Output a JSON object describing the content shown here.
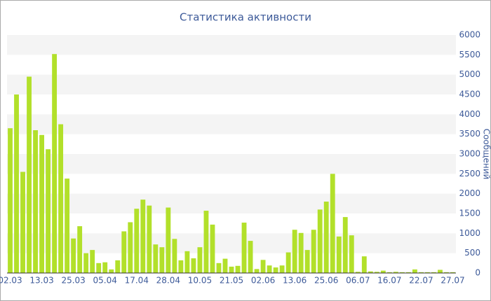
{
  "chart_data": {
    "type": "bar",
    "title": "Статистика активности",
    "y_label": "Сообщений",
    "categories": [
      "02.03",
      null,
      null,
      null,
      null,
      "13.03",
      null,
      null,
      null,
      null,
      "25.03",
      null,
      null,
      null,
      null,
      "05.04",
      null,
      null,
      null,
      null,
      "17.04",
      null,
      null,
      null,
      null,
      "28.04",
      null,
      null,
      null,
      null,
      "10.05",
      null,
      null,
      null,
      null,
      "21.05",
      null,
      null,
      null,
      null,
      "02.06",
      null,
      null,
      null,
      null,
      "13.06",
      null,
      null,
      null,
      null,
      "25.06",
      null,
      null,
      null,
      null,
      "06.07",
      null,
      null,
      null,
      null,
      "16.07",
      null,
      null,
      null,
      null,
      "22.07",
      null,
      null,
      null,
      null,
      "27.07"
    ],
    "values": [
      3650,
      4500,
      2550,
      4950,
      3600,
      3480,
      3120,
      5520,
      3750,
      2380,
      870,
      1180,
      500,
      580,
      250,
      270,
      90,
      320,
      1050,
      1280,
      1620,
      1850,
      1700,
      720,
      650,
      1650,
      860,
      320,
      550,
      370,
      650,
      1570,
      1220,
      250,
      360,
      160,
      180,
      1270,
      810,
      100,
      330,
      190,
      140,
      190,
      520,
      1090,
      1010,
      580,
      1090,
      1600,
      1800,
      2500,
      920,
      1410,
      950,
      30,
      420,
      40,
      30,
      60,
      20,
      30,
      20,
      20,
      90,
      20,
      20,
      20,
      80,
      20,
      20
    ],
    "color": "#b2e02a",
    "ylim": [
      0,
      6000
    ],
    "yticks": [
      0,
      500,
      1000,
      1500,
      2000,
      2500,
      3000,
      3500,
      4000,
      4500,
      5000,
      5500,
      6000
    ],
    "grid": true,
    "y_axis_side": "right"
  }
}
